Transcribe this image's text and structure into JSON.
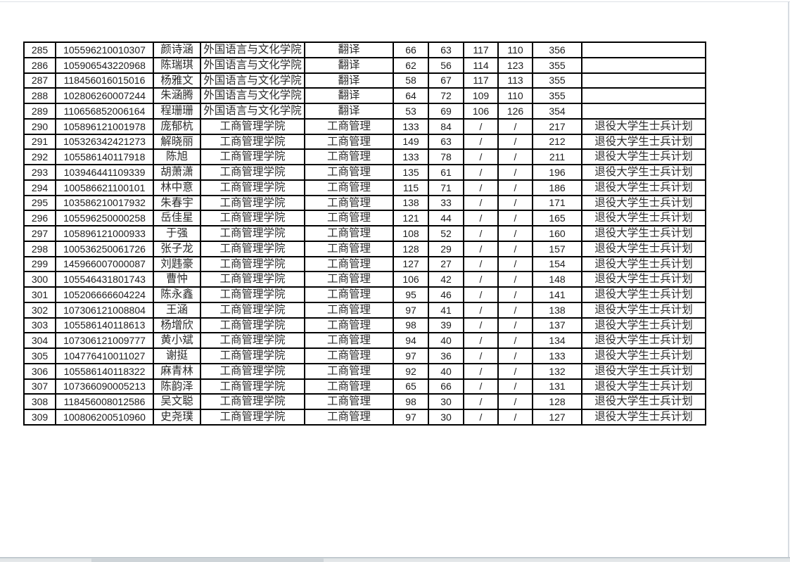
{
  "page": {
    "background_color": "#ffffff",
    "edge_line_color": "#d7dce1",
    "bottom_bar_color": "#dfe3e5",
    "table_border_color": "#000000",
    "text_color": "#1c1c1c"
  },
  "table": {
    "row_number_range": {
      "first": "285",
      "last": "309"
    },
    "rows": [
      [
        "285",
        "105596210010307",
        "颜诗涵",
        "外国语言与文化学院",
        "翻译",
        "66",
        "63",
        "117",
        "110",
        "356",
        ""
      ],
      [
        "286",
        "105906543220968",
        "陈瑞琪",
        "外国语言与文化学院",
        "翻译",
        "62",
        "56",
        "114",
        "123",
        "355",
        ""
      ],
      [
        "287",
        "118456016015016",
        "杨雅文",
        "外国语言与文化学院",
        "翻译",
        "58",
        "67",
        "117",
        "113",
        "355",
        ""
      ],
      [
        "288",
        "102806260007244",
        "朱涵腾",
        "外国语言与文化学院",
        "翻译",
        "64",
        "72",
        "109",
        "110",
        "355",
        ""
      ],
      [
        "289",
        "110656852006164",
        "程珊珊",
        "外国语言与文化学院",
        "翻译",
        "53",
        "69",
        "106",
        "126",
        "354",
        ""
      ],
      [
        "290",
        "105896121001978",
        "庞郁杭",
        "工商管理学院",
        "工商管理",
        "133",
        "84",
        "/",
        "/",
        "217",
        "退役大学生士兵计划"
      ],
      [
        "291",
        "105326342421273",
        "解晓丽",
        "工商管理学院",
        "工商管理",
        "149",
        "63",
        "/",
        "/",
        "212",
        "退役大学生士兵计划"
      ],
      [
        "292",
        "105586140117918",
        "陈旭",
        "工商管理学院",
        "工商管理",
        "133",
        "78",
        "/",
        "/",
        "211",
        "退役大学生士兵计划"
      ],
      [
        "293",
        "103946441109339",
        "胡萧潇",
        "工商管理学院",
        "工商管理",
        "135",
        "61",
        "/",
        "/",
        "196",
        "退役大学生士兵计划"
      ],
      [
        "294",
        "100586621100101",
        "林中意",
        "工商管理学院",
        "工商管理",
        "115",
        "71",
        "/",
        "/",
        "186",
        "退役大学生士兵计划"
      ],
      [
        "295",
        "103586210017932",
        "朱春宇",
        "工商管理学院",
        "工商管理",
        "138",
        "33",
        "/",
        "/",
        "171",
        "退役大学生士兵计划"
      ],
      [
        "296",
        "105596250000258",
        "岳佳星",
        "工商管理学院",
        "工商管理",
        "121",
        "44",
        "/",
        "/",
        "165",
        "退役大学生士兵计划"
      ],
      [
        "297",
        "105896121000933",
        "于强",
        "工商管理学院",
        "工商管理",
        "108",
        "52",
        "/",
        "/",
        "160",
        "退役大学生士兵计划"
      ],
      [
        "298",
        "100536250061726",
        "张子龙",
        "工商管理学院",
        "工商管理",
        "128",
        "29",
        "/",
        "/",
        "157",
        "退役大学生士兵计划"
      ],
      [
        "299",
        "145966007000087",
        "刘韪豪",
        "工商管理学院",
        "工商管理",
        "127",
        "27",
        "/",
        "/",
        "154",
        "退役大学生士兵计划"
      ],
      [
        "300",
        "105546431801743",
        "曹忡",
        "工商管理学院",
        "工商管理",
        "106",
        "42",
        "/",
        "/",
        "148",
        "退役大学生士兵计划"
      ],
      [
        "301",
        "105206666604224",
        "陈永鑫",
        "工商管理学院",
        "工商管理",
        "95",
        "46",
        "/",
        "/",
        "141",
        "退役大学生士兵计划"
      ],
      [
        "302",
        "107306121008804",
        "王涵",
        "工商管理学院",
        "工商管理",
        "97",
        "41",
        "/",
        "/",
        "138",
        "退役大学生士兵计划"
      ],
      [
        "303",
        "105586140118613",
        "杨增欣",
        "工商管理学院",
        "工商管理",
        "98",
        "39",
        "/",
        "/",
        "137",
        "退役大学生士兵计划"
      ],
      [
        "304",
        "107306121009777",
        "黄小斌",
        "工商管理学院",
        "工商管理",
        "94",
        "40",
        "/",
        "/",
        "134",
        "退役大学生士兵计划"
      ],
      [
        "305",
        "104776410011027",
        "谢挺",
        "工商管理学院",
        "工商管理",
        "97",
        "36",
        "/",
        "/",
        "133",
        "退役大学生士兵计划"
      ],
      [
        "306",
        "105586140118322",
        "麻青林",
        "工商管理学院",
        "工商管理",
        "92",
        "40",
        "/",
        "/",
        "132",
        "退役大学生士兵计划"
      ],
      [
        "307",
        "107366090005213",
        "陈韵泽",
        "工商管理学院",
        "工商管理",
        "65",
        "66",
        "/",
        "/",
        "131",
        "退役大学生士兵计划"
      ],
      [
        "308",
        "118456008012586",
        "吴文聪",
        "工商管理学院",
        "工商管理",
        "98",
        "30",
        "/",
        "/",
        "128",
        "退役大学生士兵计划"
      ],
      [
        "309",
        "100806200510960",
        "史尧璞",
        "工商管理学院",
        "工商管理",
        "97",
        "30",
        "/",
        "/",
        "127",
        "退役大学生士兵计划"
      ]
    ]
  }
}
